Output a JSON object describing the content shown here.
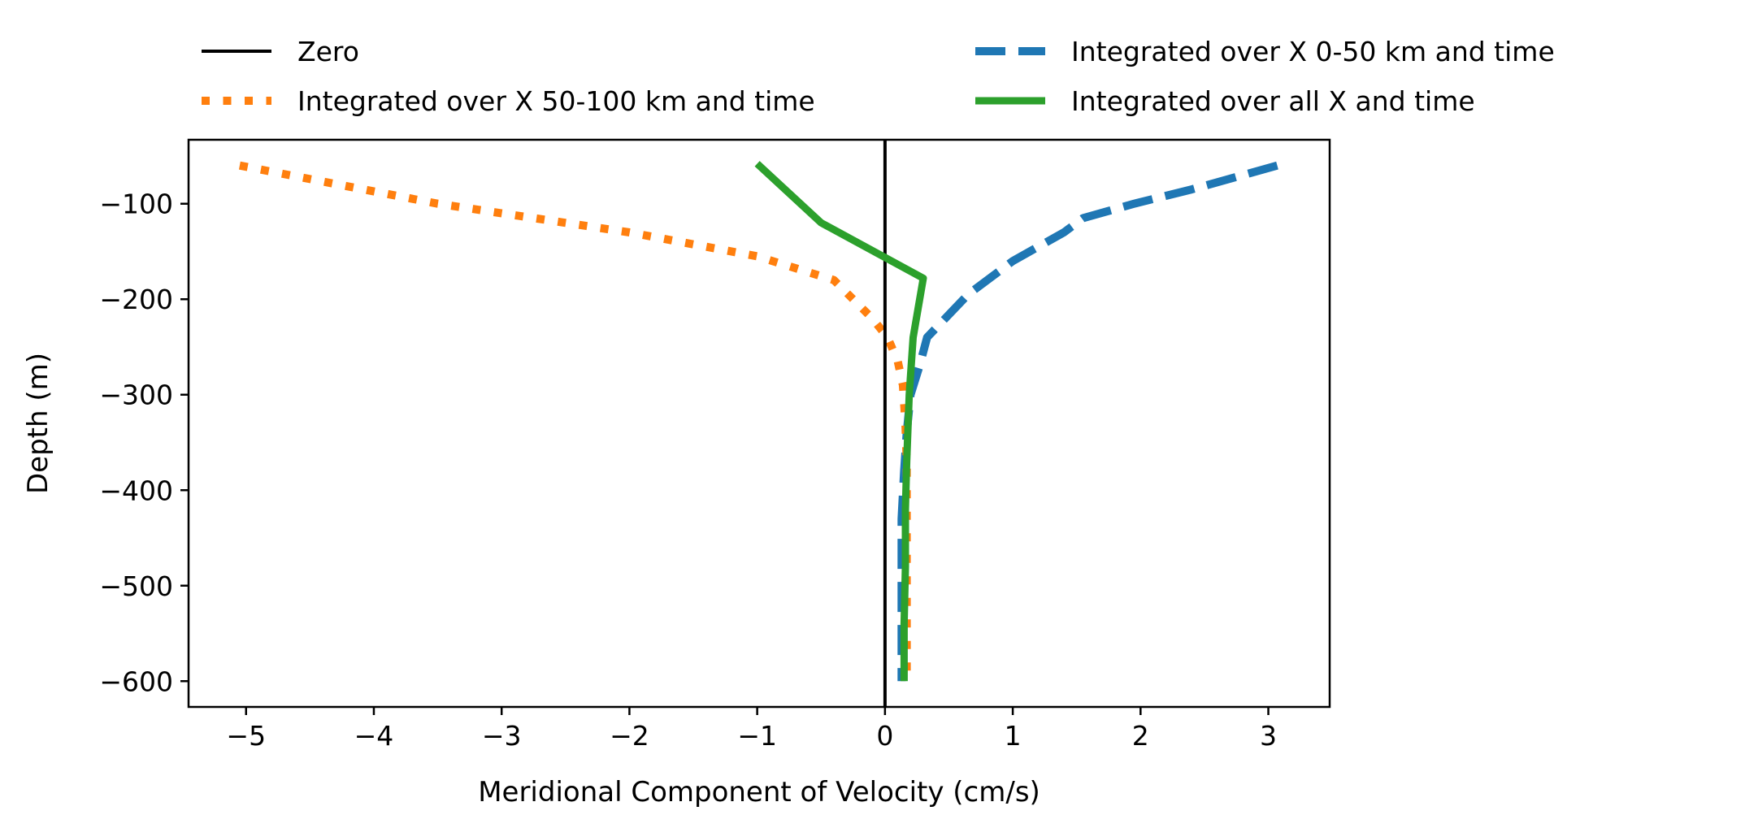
{
  "chart_data": {
    "type": "line",
    "title": "",
    "xlabel": "Meridional Component of Velocity (cm/s)",
    "ylabel": "Depth (m)",
    "xlim": [
      -5.45,
      3.48
    ],
    "ylim": [
      -627,
      -33
    ],
    "xticks": [
      -5,
      -4,
      -3,
      -2,
      -1,
      0,
      1,
      2,
      3
    ],
    "xtick_labels": [
      "−5",
      "−4",
      "−3",
      "−2",
      "−1",
      "0",
      "1",
      "2",
      "3"
    ],
    "yticks": [
      -100,
      -200,
      -300,
      -400,
      -500,
      -600
    ],
    "ytick_labels": [
      "−100",
      "−200",
      "−300",
      "−400",
      "−500",
      "−600"
    ],
    "grid": false,
    "legend_position": "above plot, two columns",
    "legend_order": [
      0,
      2,
      1,
      3
    ],
    "series": [
      {
        "name": "Zero",
        "color": "#000000",
        "style": "solid",
        "x": [
          0,
          0
        ],
        "y": [
          -33,
          -627
        ]
      },
      {
        "name": "Integrated over X 0-50 km and time",
        "color": "#1f77b4",
        "style": "dashed",
        "x": [
          3.07,
          2.4,
          1.95,
          1.55,
          1.4,
          1.0,
          0.65,
          0.33,
          0.27,
          0.2,
          0.17,
          0.15,
          0.13,
          0.13,
          0.13,
          0.13
        ],
        "y": [
          -60,
          -85,
          -100,
          -115,
          -130,
          -160,
          -195,
          -240,
          -270,
          -300,
          -340,
          -380,
          -430,
          -480,
          -540,
          -600
        ]
      },
      {
        "name": "Integrated over X 50-100 km and time",
        "color": "#ff7f0e",
        "style": "dotted",
        "x": [
          -5.05,
          -3.5,
          -2.0,
          -1.0,
          -0.4,
          -0.25,
          -0.1,
          0.02,
          0.1,
          0.14,
          0.16,
          0.17,
          0.17,
          0.17,
          0.17,
          0.17
        ],
        "y": [
          -60,
          -100,
          -130,
          -155,
          -180,
          -200,
          -220,
          -240,
          -265,
          -290,
          -330,
          -370,
          -420,
          -480,
          -540,
          -600
        ]
      },
      {
        "name": "Integrated over all X and time",
        "color": "#2ca02c",
        "style": "solid",
        "x": [
          -1.0,
          -0.5,
          0.3,
          0.22,
          0.19,
          0.17,
          0.16,
          0.16,
          0.15,
          0.15
        ],
        "y": [
          -58,
          -120,
          -178,
          -240,
          -300,
          -370,
          -420,
          -480,
          -540,
          -600
        ]
      }
    ]
  }
}
